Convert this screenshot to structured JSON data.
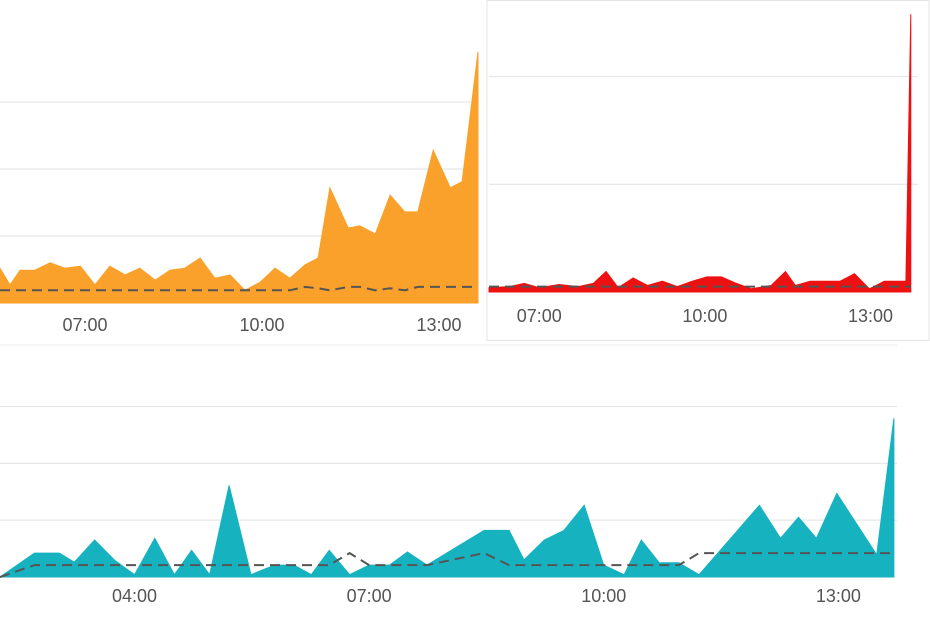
{
  "chart_data": [
    {
      "type": "area",
      "x": [
        5.56,
        5.73,
        5.9,
        6.15,
        6.41,
        6.66,
        6.92,
        7.17,
        7.42,
        7.68,
        7.93,
        8.19,
        8.44,
        8.69,
        8.95,
        9.2,
        9.46,
        9.71,
        9.97,
        10.22,
        10.47,
        10.73,
        10.95,
        11.15,
        11.46,
        11.66,
        11.92,
        12.17,
        12.42,
        12.64,
        12.9,
        13.19,
        13.39,
        13.66
      ],
      "series": [
        {
          "color": "#f9a12a",
          "values": [
            0.52,
            0.27,
            0.49,
            0.49,
            0.6,
            0.52,
            0.55,
            0.27,
            0.55,
            0.42,
            0.52,
            0.34,
            0.49,
            0.52,
            0.67,
            0.37,
            0.42,
            0.19,
            0.31,
            0.52,
            0.37,
            0.57,
            0.67,
            1.72,
            1.12,
            1.15,
            1.03,
            1.61,
            1.36,
            1.36,
            2.28,
            1.72,
            1.81,
            3.75
          ]
        },
        {
          "color": "#555555",
          "dashed": true,
          "values": [
            0.19,
            0.19,
            0.19,
            0.19,
            0.19,
            0.19,
            0.19,
            0.19,
            0.19,
            0.19,
            0.19,
            0.19,
            0.19,
            0.19,
            0.19,
            0.19,
            0.19,
            0.19,
            0.19,
            0.19,
            0.19,
            0.24,
            0.22,
            0.19,
            0.24,
            0.24,
            0.19,
            0.22,
            0.19,
            0.24,
            0.24,
            0.24,
            0.24,
            0.24
          ]
        }
      ],
      "xlim": [
        5.56,
        13.66
      ],
      "xticks": [
        {
          "value": 7,
          "label": "07:00"
        },
        {
          "value": 10,
          "label": "10:00"
        },
        {
          "value": 13,
          "label": "13:00"
        }
      ],
      "ylim": [
        0,
        4
      ],
      "yticks": [
        1,
        2,
        3
      ],
      "grid": true
    },
    {
      "type": "area",
      "x": [
        6.09,
        6.46,
        6.73,
        7,
        7.36,
        7.71,
        7.98,
        8.21,
        8.43,
        8.7,
        8.96,
        9.23,
        9.5,
        9.77,
        10.04,
        10.3,
        10.57,
        10.84,
        11.2,
        11.46,
        11.64,
        11.91,
        12.18,
        12.45,
        12.71,
        12.98,
        13.25,
        13.52,
        13.64,
        13.73
      ],
      "series": [
        {
          "color": "#ee1111",
          "values": [
            0.04,
            0.05,
            0.08,
            0.04,
            0.07,
            0.05,
            0.08,
            0.19,
            0.04,
            0.13,
            0.06,
            0.1,
            0.05,
            0.1,
            0.14,
            0.14,
            0.08,
            0.03,
            0.06,
            0.19,
            0.06,
            0.1,
            0.1,
            0.1,
            0.17,
            0.03,
            0.1,
            0.1,
            0.1,
            2.58
          ]
        },
        {
          "color": "#555555",
          "dashed": true,
          "values": [
            0.05,
            0.05,
            0.05,
            0.05,
            0.05,
            0.05,
            0.05,
            0.05,
            0.05,
            0.05,
            0.05,
            0.05,
            0.05,
            0.05,
            0.05,
            0.05,
            0.05,
            0.05,
            0.05,
            0.05,
            0.05,
            0.05,
            0.05,
            0.05,
            0.05,
            0.05,
            0.05,
            0.05,
            0.05,
            0.05
          ]
        }
      ],
      "xlim": [
        6.09,
        13.86
      ],
      "xticks": [
        {
          "value": 7,
          "label": "07:00"
        },
        {
          "value": 10,
          "label": "10:00"
        },
        {
          "value": 13,
          "label": "13:00"
        }
      ],
      "ylim": [
        0,
        2.6
      ],
      "yticks": [
        1,
        2
      ],
      "grid": true
    },
    {
      "type": "area",
      "x": [
        2.28,
        2.72,
        3.04,
        3.23,
        3.49,
        3.74,
        4,
        4.26,
        4.51,
        4.73,
        4.96,
        5.21,
        5.49,
        5.79,
        6.04,
        6.26,
        6.49,
        6.75,
        7,
        7.26,
        7.49,
        7.74,
        8.47,
        8.79,
        8.98,
        9.24,
        9.49,
        9.75,
        10,
        10.26,
        10.48,
        10.71,
        10.96,
        11.22,
        11.99,
        12.26,
        12.49,
        12.72,
        12.98,
        13.49,
        13.71
      ],
      "series": [
        {
          "color": "#17b2c0",
          "values": [
            0,
            0.42,
            0.42,
            0.26,
            0.65,
            0.3,
            0.04,
            0.68,
            0.04,
            0.47,
            0.04,
            1.61,
            0.04,
            0.21,
            0.21,
            0.04,
            0.47,
            0.04,
            0.21,
            0.21,
            0.44,
            0.21,
            0.82,
            0.82,
            0.3,
            0.65,
            0.82,
            1.26,
            0.21,
            0.04,
            0.65,
            0.25,
            0.25,
            0.04,
            1.26,
            0.68,
            1.05,
            0.68,
            1.47,
            0.39,
            2.79
          ]
        },
        {
          "color": "#555555",
          "dashed": true,
          "values": [
            0,
            0.21,
            0.21,
            0.21,
            0.21,
            0.21,
            0.21,
            0.21,
            0.21,
            0.21,
            0.21,
            0.21,
            0.21,
            0.21,
            0.21,
            0.21,
            0.21,
            0.42,
            0.21,
            0.21,
            0.21,
            0.21,
            0.42,
            0.21,
            0.21,
            0.21,
            0.21,
            0.21,
            0.21,
            0.21,
            0.21,
            0.21,
            0.21,
            0.42,
            0.42,
            0.42,
            0.42,
            0.42,
            0.42,
            0.42,
            0.42
          ]
        }
      ],
      "xlim": [
        2.28,
        13.75
      ],
      "xticks": [
        {
          "value": 4,
          "label": "04:00"
        },
        {
          "value": 7,
          "label": "07:00"
        },
        {
          "value": 10,
          "label": "10:00"
        },
        {
          "value": 13,
          "label": "13:00"
        }
      ],
      "ylim": [
        0,
        3.2
      ],
      "yticks": [
        1,
        2,
        3
      ],
      "grid": true
    }
  ]
}
